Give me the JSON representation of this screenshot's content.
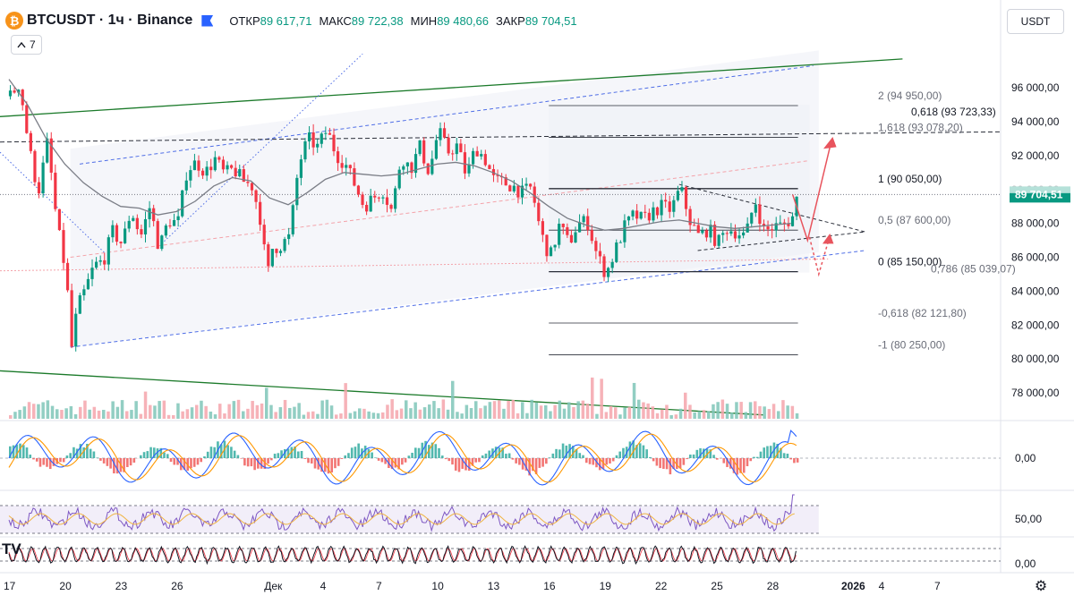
{
  "header": {
    "symbol": "BTCUSDT · 1ч · Binance",
    "logo_glyph": "₿",
    "ohlc": [
      {
        "k": "ОТКР",
        "v": "89 617,71"
      },
      {
        "k": "МАКС",
        "v": "89 722,38"
      },
      {
        "k": "МИН",
        "v": "89 480,66"
      },
      {
        "k": "ЗАКР",
        "v": "89 704,51"
      }
    ]
  },
  "indicators_button": {
    "label": "7",
    "icon": "chevron-up-icon"
  },
  "currency_button": {
    "label": "USDT"
  },
  "last_price_label": "89 704,51",
  "branding": "TV",
  "colors": {
    "up": "#089981",
    "down": "#f23645",
    "accent": "#2962ff",
    "green_line": "#1b7a2a",
    "projection": "#e8545d"
  },
  "chart_data": {
    "type": "candlestick",
    "title": "BTCUSDT · 1ч · Binance",
    "ylim": [
      77000,
      97800
    ],
    "y_ticks": [
      "96 000,00",
      "94 000,00",
      "92 000,00",
      "90 000,00",
      "88 000,00",
      "86 000,00",
      "84 000,00",
      "82 000,00",
      "80 000,00",
      "78 000,00"
    ],
    "y_tick_values": [
      96000,
      94000,
      92000,
      90000,
      88000,
      86000,
      84000,
      82000,
      80000,
      78000
    ],
    "x_ticks": [
      {
        "label": "17",
        "d": 0
      },
      {
        "label": "20",
        "d": 3
      },
      {
        "label": "23",
        "d": 6
      },
      {
        "label": "26",
        "d": 9
      },
      {
        "label": "Дек",
        "d": 14
      },
      {
        "label": "4",
        "d": 17
      },
      {
        "label": "7",
        "d": 20
      },
      {
        "label": "10",
        "d": 23
      },
      {
        "label": "13",
        "d": 26
      },
      {
        "label": "16",
        "d": 29
      },
      {
        "label": "19",
        "d": 32
      },
      {
        "label": "22",
        "d": 35
      },
      {
        "label": "25",
        "d": 38
      },
      {
        "label": "28",
        "d": 41
      },
      {
        "label": "2026",
        "d": 45
      },
      {
        "label": "4",
        "d": 47
      },
      {
        "label": "7",
        "d": 50
      }
    ],
    "last_day": 42.3,
    "price_path": [
      [
        0,
        95500
      ],
      [
        0.5,
        96300
      ],
      [
        1,
        92500
      ],
      [
        1.5,
        89800
      ],
      [
        2,
        92800
      ],
      [
        2.5,
        88000
      ],
      [
        3,
        85000
      ],
      [
        3.3,
        80700
      ],
      [
        3.6,
        83000
      ],
      [
        4,
        84000
      ],
      [
        4.5,
        85500
      ],
      [
        5,
        85800
      ],
      [
        5.5,
        87500
      ],
      [
        6,
        86800
      ],
      [
        6.5,
        88800
      ],
      [
        7,
        87200
      ],
      [
        7.5,
        89000
      ],
      [
        8,
        86500
      ],
      [
        8.5,
        88200
      ],
      [
        9,
        88000
      ],
      [
        9.5,
        91200
      ],
      [
        10,
        91600
      ],
      [
        10.5,
        91000
      ],
      [
        11,
        91800
      ],
      [
        11.5,
        90900
      ],
      [
        12,
        91200
      ],
      [
        12.5,
        90500
      ],
      [
        13,
        90200
      ],
      [
        13.5,
        88000
      ],
      [
        13.8,
        84600
      ],
      [
        14,
        86500
      ],
      [
        14.5,
        86700
      ],
      [
        15,
        87200
      ],
      [
        15.5,
        91500
      ],
      [
        16,
        93000
      ],
      [
        16.5,
        92500
      ],
      [
        17,
        93500
      ],
      [
        17.5,
        92100
      ],
      [
        18,
        91500
      ],
      [
        18.5,
        90300
      ],
      [
        19,
        89000
      ],
      [
        19.5,
        89500
      ],
      [
        20,
        90000
      ],
      [
        20.5,
        88700
      ],
      [
        21,
        92000
      ],
      [
        21.5,
        91200
      ],
      [
        22,
        92500
      ],
      [
        22.5,
        91000
      ],
      [
        23,
        93500
      ],
      [
        23.5,
        92200
      ],
      [
        24,
        92600
      ],
      [
        24.5,
        90800
      ],
      [
        25,
        92500
      ],
      [
        25.5,
        91800
      ],
      [
        26,
        90500
      ],
      [
        26.5,
        90400
      ],
      [
        27,
        90200
      ],
      [
        27.5,
        89800
      ],
      [
        28,
        90100
      ],
      [
        28.5,
        87400
      ],
      [
        29,
        86000
      ],
      [
        29.5,
        87900
      ],
      [
        30,
        86800
      ],
      [
        30.5,
        88000
      ],
      [
        31,
        88100
      ],
      [
        31.5,
        86200
      ],
      [
        32,
        85000
      ],
      [
        32.5,
        86400
      ],
      [
        33,
        87800
      ],
      [
        33.5,
        88500
      ],
      [
        34,
        88200
      ],
      [
        34.5,
        88700
      ],
      [
        35,
        89000
      ],
      [
        35.5,
        88800
      ],
      [
        36,
        90100
      ],
      [
        36.5,
        88200
      ],
      [
        37,
        87200
      ],
      [
        37.5,
        87700
      ],
      [
        38,
        86800
      ],
      [
        38.5,
        87700
      ],
      [
        39,
        87500
      ],
      [
        39.5,
        87200
      ],
      [
        40,
        89400
      ],
      [
        40.5,
        87500
      ],
      [
        41,
        87800
      ],
      [
        41.5,
        87900
      ],
      [
        42,
        88300
      ],
      [
        42.3,
        89704
      ]
    ],
    "moving_average": [
      [
        0,
        96500
      ],
      [
        1,
        95000
      ],
      [
        2,
        93000
      ],
      [
        3,
        91500
      ],
      [
        4,
        90400
      ],
      [
        5,
        89600
      ],
      [
        6,
        89000
      ],
      [
        7,
        88900
      ],
      [
        8,
        88500
      ],
      [
        9,
        88700
      ],
      [
        10,
        89300
      ],
      [
        11,
        90200
      ],
      [
        12,
        90700
      ],
      [
        13,
        90500
      ],
      [
        14,
        89500
      ],
      [
        15,
        89100
      ],
      [
        16,
        89800
      ],
      [
        17,
        90600
      ],
      [
        18,
        91000
      ],
      [
        19,
        90900
      ],
      [
        20,
        90800
      ],
      [
        21,
        90900
      ],
      [
        22,
        91200
      ],
      [
        23,
        91500
      ],
      [
        24,
        91600
      ],
      [
        25,
        91400
      ],
      [
        26,
        91000
      ],
      [
        27,
        90500
      ],
      [
        28,
        89800
      ],
      [
        29,
        89000
      ],
      [
        30,
        88300
      ],
      [
        31,
        87900
      ],
      [
        32,
        87600
      ],
      [
        33,
        87700
      ],
      [
        34,
        87900
      ],
      [
        35,
        88100
      ],
      [
        36,
        88200
      ],
      [
        37,
        88000
      ],
      [
        38,
        87800
      ],
      [
        39,
        87700
      ],
      [
        40,
        87800
      ],
      [
        41,
        87900
      ],
      [
        42,
        88000
      ]
    ],
    "fibonacci": {
      "x_from": 29,
      "x_to": 39.5,
      "levels": [
        {
          "ratio": "2",
          "label": "2 (94 950,00)",
          "price": 94950
        },
        {
          "ratio": "1,618",
          "label": "1,618 (93 078,20)",
          "price": 93078.2
        },
        {
          "ratio": "1",
          "label": "1 (90 050,00)",
          "price": 90050
        },
        {
          "ratio": "0,5",
          "label": "0,5 (87 600,00)",
          "price": 87600
        },
        {
          "ratio": "0",
          "label": "0 (85 150,00)",
          "price": 85150
        },
        {
          "ratio": "-0,618",
          "label": "-0,618 (82 121,80)",
          "price": 82121.8
        },
        {
          "ratio": "-1",
          "label": "-1 (80 250,00)",
          "price": 80250
        }
      ]
    },
    "annotations": [
      {
        "label": "0,618 (93 723,33)",
        "price": 93723.33
      },
      {
        "label": "0,786 (85 039,07)",
        "price": 85039.07
      }
    ],
    "rsi_panel": {
      "tick": "50,00",
      "band_upper": 70,
      "band_lower": 30
    },
    "macd_panel": {
      "tick": "0,00"
    },
    "stoch_panel": {
      "tick": "0,00"
    }
  }
}
